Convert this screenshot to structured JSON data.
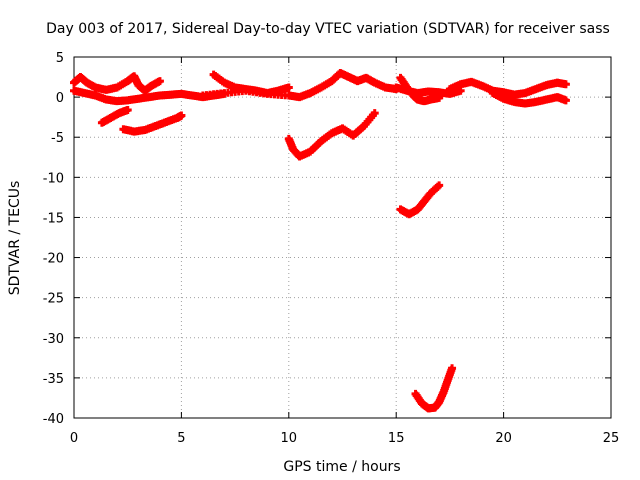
{
  "chart_data": {
    "type": "scatter",
    "title": "Day 003 of 2017, Sidereal Day-to-day VTEC variation (SDTVAR) for receiver sass",
    "xlabel": "GPS time / hours",
    "ylabel": "SDTVAR / TECUs",
    "xlim": [
      0,
      25
    ],
    "ylim": [
      -40,
      5
    ],
    "xticks": [
      "0",
      "5",
      "10",
      "15",
      "20",
      "25"
    ],
    "yticks": [
      "5",
      "0",
      "-5",
      "-10",
      "-15",
      "-20",
      "-25",
      "-30",
      "-35",
      "-40"
    ],
    "grid": true,
    "marker_color": "#ff0000",
    "series": [
      {
        "x": [
          0.0,
          0.3,
          0.6,
          1.0,
          1.5,
          2.0,
          2.5,
          2.8,
          3.0,
          3.3,
          3.6,
          4.0
        ],
        "y": [
          1.8,
          2.5,
          1.8,
          1.2,
          0.9,
          1.2,
          2.0,
          2.6,
          1.5,
          0.8,
          1.4,
          2.0
        ]
      },
      {
        "x": [
          0.0,
          0.5,
          1.0,
          1.5,
          2.0,
          2.5,
          3.0,
          3.5,
          4.0,
          4.5,
          5.0,
          5.5,
          6.0,
          6.5,
          7.0
        ],
        "y": [
          0.8,
          0.5,
          0.2,
          -0.3,
          -0.5,
          -0.4,
          -0.2,
          0.0,
          0.2,
          0.3,
          0.4,
          0.2,
          0.0,
          0.2,
          0.4
        ]
      },
      {
        "x": [
          1.3,
          1.7,
          2.1,
          2.5
        ],
        "y": [
          -3.2,
          -2.6,
          -2.0,
          -1.6
        ]
      },
      {
        "x": [
          2.3,
          2.8,
          3.3,
          3.8,
          4.3,
          4.8,
          5.0
        ],
        "y": [
          -4.0,
          -4.3,
          -4.1,
          -3.6,
          -3.1,
          -2.6,
          -2.3
        ]
      },
      {
        "x": [
          6.5,
          7.0,
          7.5,
          8.0,
          8.5,
          9.0,
          9.5,
          10.0
        ],
        "y": [
          2.8,
          1.8,
          1.2,
          1.0,
          0.8,
          0.5,
          0.8,
          1.2
        ]
      },
      {
        "x": [
          6.0,
          7.0,
          8.0,
          9.0,
          10.0,
          10.5,
          11.0,
          11.5,
          12.0,
          12.4,
          12.8,
          13.2,
          13.6,
          14.0,
          14.5,
          15.0
        ],
        "y": [
          0.2,
          0.5,
          0.8,
          0.4,
          0.2,
          0.0,
          0.5,
          1.2,
          2.0,
          3.0,
          2.5,
          2.0,
          2.4,
          1.8,
          1.2,
          1.0
        ]
      },
      {
        "x": [
          10.0,
          10.2,
          10.5,
          11.0,
          11.5,
          12.0,
          12.5,
          13.0,
          13.5,
          14.0
        ],
        "y": [
          -5.2,
          -6.5,
          -7.4,
          -6.8,
          -5.5,
          -4.5,
          -3.9,
          -4.8,
          -3.6,
          -2.0
        ]
      },
      {
        "x": [
          15.2,
          15.5,
          15.8,
          16.0,
          16.3,
          16.6,
          17.0
        ],
        "y": [
          2.4,
          1.2,
          0.2,
          -0.3,
          -0.5,
          -0.3,
          -0.1
        ]
      },
      {
        "x": [
          15.0,
          15.5,
          16.0,
          16.5,
          17.0,
          17.5,
          18.0
        ],
        "y": [
          1.2,
          0.8,
          0.5,
          0.7,
          0.6,
          0.4,
          0.8
        ]
      },
      {
        "x": [
          15.2,
          15.6,
          16.0,
          16.3,
          16.6,
          17.0
        ],
        "y": [
          -14.0,
          -14.6,
          -14.0,
          -13.0,
          -12.0,
          -11.0
        ]
      },
      {
        "x": [
          15.9,
          16.2,
          16.5,
          16.8,
          17.0,
          17.2,
          17.4,
          17.6
        ],
        "y": [
          -37.0,
          -38.2,
          -38.8,
          -38.7,
          -38.0,
          -36.8,
          -35.3,
          -33.8
        ]
      },
      {
        "x": [
          17.5,
          18.0,
          18.5,
          19.0,
          19.5,
          20.0,
          20.5,
          21.0,
          21.5,
          22.0,
          22.5,
          22.9
        ],
        "y": [
          1.0,
          1.6,
          1.9,
          1.4,
          0.8,
          0.6,
          0.3,
          0.5,
          1.0,
          1.5,
          1.8,
          1.6
        ]
      },
      {
        "x": [
          19.5,
          20.0,
          20.5,
          21.0,
          21.5,
          22.0,
          22.5,
          22.9
        ],
        "y": [
          0.5,
          -0.2,
          -0.6,
          -0.8,
          -0.6,
          -0.3,
          0.0,
          -0.4
        ]
      }
    ]
  }
}
